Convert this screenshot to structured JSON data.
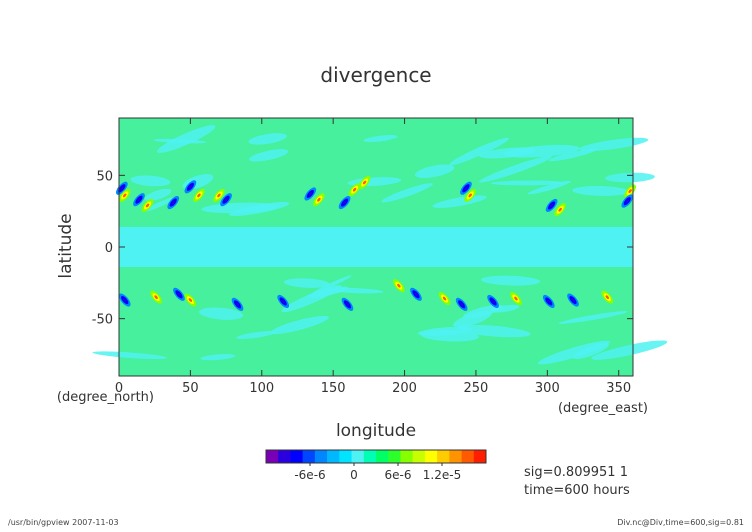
{
  "chart_data": {
    "type": "heatmap",
    "title": "divergence",
    "xlabel": "longitude",
    "ylabel": "latitude",
    "x_unit": "(degree_east)",
    "y_unit": "(degree_north)",
    "xlim": [
      0,
      360
    ],
    "ylim": [
      -90,
      90
    ],
    "x_ticks": [
      0,
      50,
      100,
      150,
      200,
      250,
      300,
      350
    ],
    "y_ticks": [
      50,
      0,
      -50
    ],
    "colorbar": {
      "tick_labels": [
        "-6e-6",
        "0",
        "6e-6",
        "1.2e-5"
      ],
      "tick_values": [
        -6e-06,
        0,
        6e-06,
        1.2e-05
      ],
      "range": [
        -1.2e-05,
        1.8e-05
      ],
      "colors": [
        "#7a00b8",
        "#2a00e0",
        "#0000ff",
        "#0046ff",
        "#0086ff",
        "#00b8ff",
        "#00e4ff",
        "#4ff2f2",
        "#00ffb4",
        "#00ff64",
        "#2cff2c",
        "#86ff00",
        "#c8ff00",
        "#ffff00",
        "#ffcc00",
        "#ff9400",
        "#ff5a00",
        "#ff1e00"
      ]
    },
    "background_color": "#46f09c",
    "equatorial_band_color": "#4ff2f2",
    "eddies": [
      {
        "lon": 2,
        "lat": 41,
        "sign": -1
      },
      {
        "lon": 4,
        "lat": 36,
        "sign": 1
      },
      {
        "lon": 14,
        "lat": 33,
        "sign": -1
      },
      {
        "lon": 20,
        "lat": 29,
        "sign": 1
      },
      {
        "lon": 38,
        "lat": 31,
        "sign": -1
      },
      {
        "lon": 50,
        "lat": 42,
        "sign": -1
      },
      {
        "lon": 56,
        "lat": 36,
        "sign": 1
      },
      {
        "lon": 70,
        "lat": 36,
        "sign": 1
      },
      {
        "lon": 75,
        "lat": 33,
        "sign": -1
      },
      {
        "lon": 134,
        "lat": 37,
        "sign": -1
      },
      {
        "lon": 140,
        "lat": 33,
        "sign": 1
      },
      {
        "lon": 158,
        "lat": 31,
        "sign": -1
      },
      {
        "lon": 165,
        "lat": 40,
        "sign": 1
      },
      {
        "lon": 172,
        "lat": 45,
        "sign": 1
      },
      {
        "lon": 243,
        "lat": 41,
        "sign": -1
      },
      {
        "lon": 246,
        "lat": 36,
        "sign": 1
      },
      {
        "lon": 303,
        "lat": 29,
        "sign": -1
      },
      {
        "lon": 309,
        "lat": 26,
        "sign": 1
      },
      {
        "lon": 358,
        "lat": 39,
        "sign": 1
      },
      {
        "lon": 356,
        "lat": 32,
        "sign": -1
      },
      {
        "lon": 4,
        "lat": -37,
        "sign": -1
      },
      {
        "lon": 26,
        "lat": -35,
        "sign": 1
      },
      {
        "lon": 42,
        "lat": -33,
        "sign": -1
      },
      {
        "lon": 50,
        "lat": -37,
        "sign": 1
      },
      {
        "lon": 83,
        "lat": -40,
        "sign": -1
      },
      {
        "lon": 115,
        "lat": -38,
        "sign": -1
      },
      {
        "lon": 160,
        "lat": -40,
        "sign": -1
      },
      {
        "lon": 196,
        "lat": -27,
        "sign": 1
      },
      {
        "lon": 208,
        "lat": -33,
        "sign": -1
      },
      {
        "lon": 228,
        "lat": -36,
        "sign": 1
      },
      {
        "lon": 240,
        "lat": -40,
        "sign": -1
      },
      {
        "lon": 262,
        "lat": -38,
        "sign": -1
      },
      {
        "lon": 278,
        "lat": -36,
        "sign": 1
      },
      {
        "lon": 301,
        "lat": -38,
        "sign": -1
      },
      {
        "lon": 318,
        "lat": -37,
        "sign": -1
      },
      {
        "lon": 342,
        "lat": -35,
        "sign": 1
      }
    ]
  },
  "annotations": {
    "sig_line": "sig=0.809951 1",
    "time_line": "time=600 hours",
    "footer_left": "/usr/bin/gpview   2007-11-03",
    "footer_right": "Div.nc@Div,time=600,sig=0.81"
  }
}
